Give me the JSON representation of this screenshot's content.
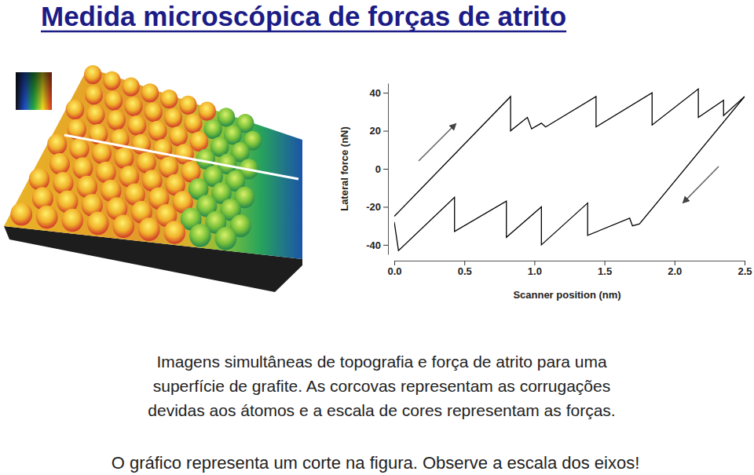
{
  "title": "Medida microscópica de forças de atrito",
  "caption": [
    "Imagens simultâneas de topografia e força de atrito para uma",
    "superfície de grafite. As corcovas representam as corrugações",
    "devidas aos átomos e a escala de cores representam as forças."
  ],
  "note": "O gráfico representa um corte na figura. Observe a escala dos eixos!",
  "chart_data": {
    "type": "line",
    "x_label": "Scanner position (nm)",
    "y_label": "Lateral force (nN)",
    "xlim": [
      0,
      2.5
    ],
    "ylim": [
      -45,
      45
    ],
    "xticks": [
      {
        "value": 0,
        "label": "0.0"
      },
      0.5,
      {
        "value": 1,
        "label": "1.0"
      },
      1.5,
      {
        "value": 2,
        "label": "2.0"
      },
      2.5
    ],
    "yticks": [
      40,
      20,
      0,
      -20,
      -40
    ],
    "grid": false,
    "series": [
      {
        "color": "#000000",
        "x": [
          0,
          0.83,
          0.83,
          0.95,
          0.98,
          1.05,
          1.08,
          1.44,
          1.44,
          1.84,
          1.84,
          2.17,
          2.17,
          2.35,
          2.35,
          2.5
        ],
        "values": [
          -25,
          38,
          20,
          27,
          21,
          24,
          22,
          38,
          22,
          40,
          23,
          42,
          27,
          36,
          28,
          38
        ]
      },
      {
        "color": "#000000",
        "x": [
          0,
          0.03,
          0.43,
          0.43,
          0.8,
          0.8,
          1.05,
          1.05,
          1.38,
          1.38,
          1.68,
          1.7,
          1.75,
          2.5
        ],
        "values": [
          -28,
          -43,
          -15,
          -33,
          -17,
          -36,
          -20,
          -40,
          -18,
          -35,
          -26,
          -30,
          -29,
          38
        ]
      }
    ]
  }
}
